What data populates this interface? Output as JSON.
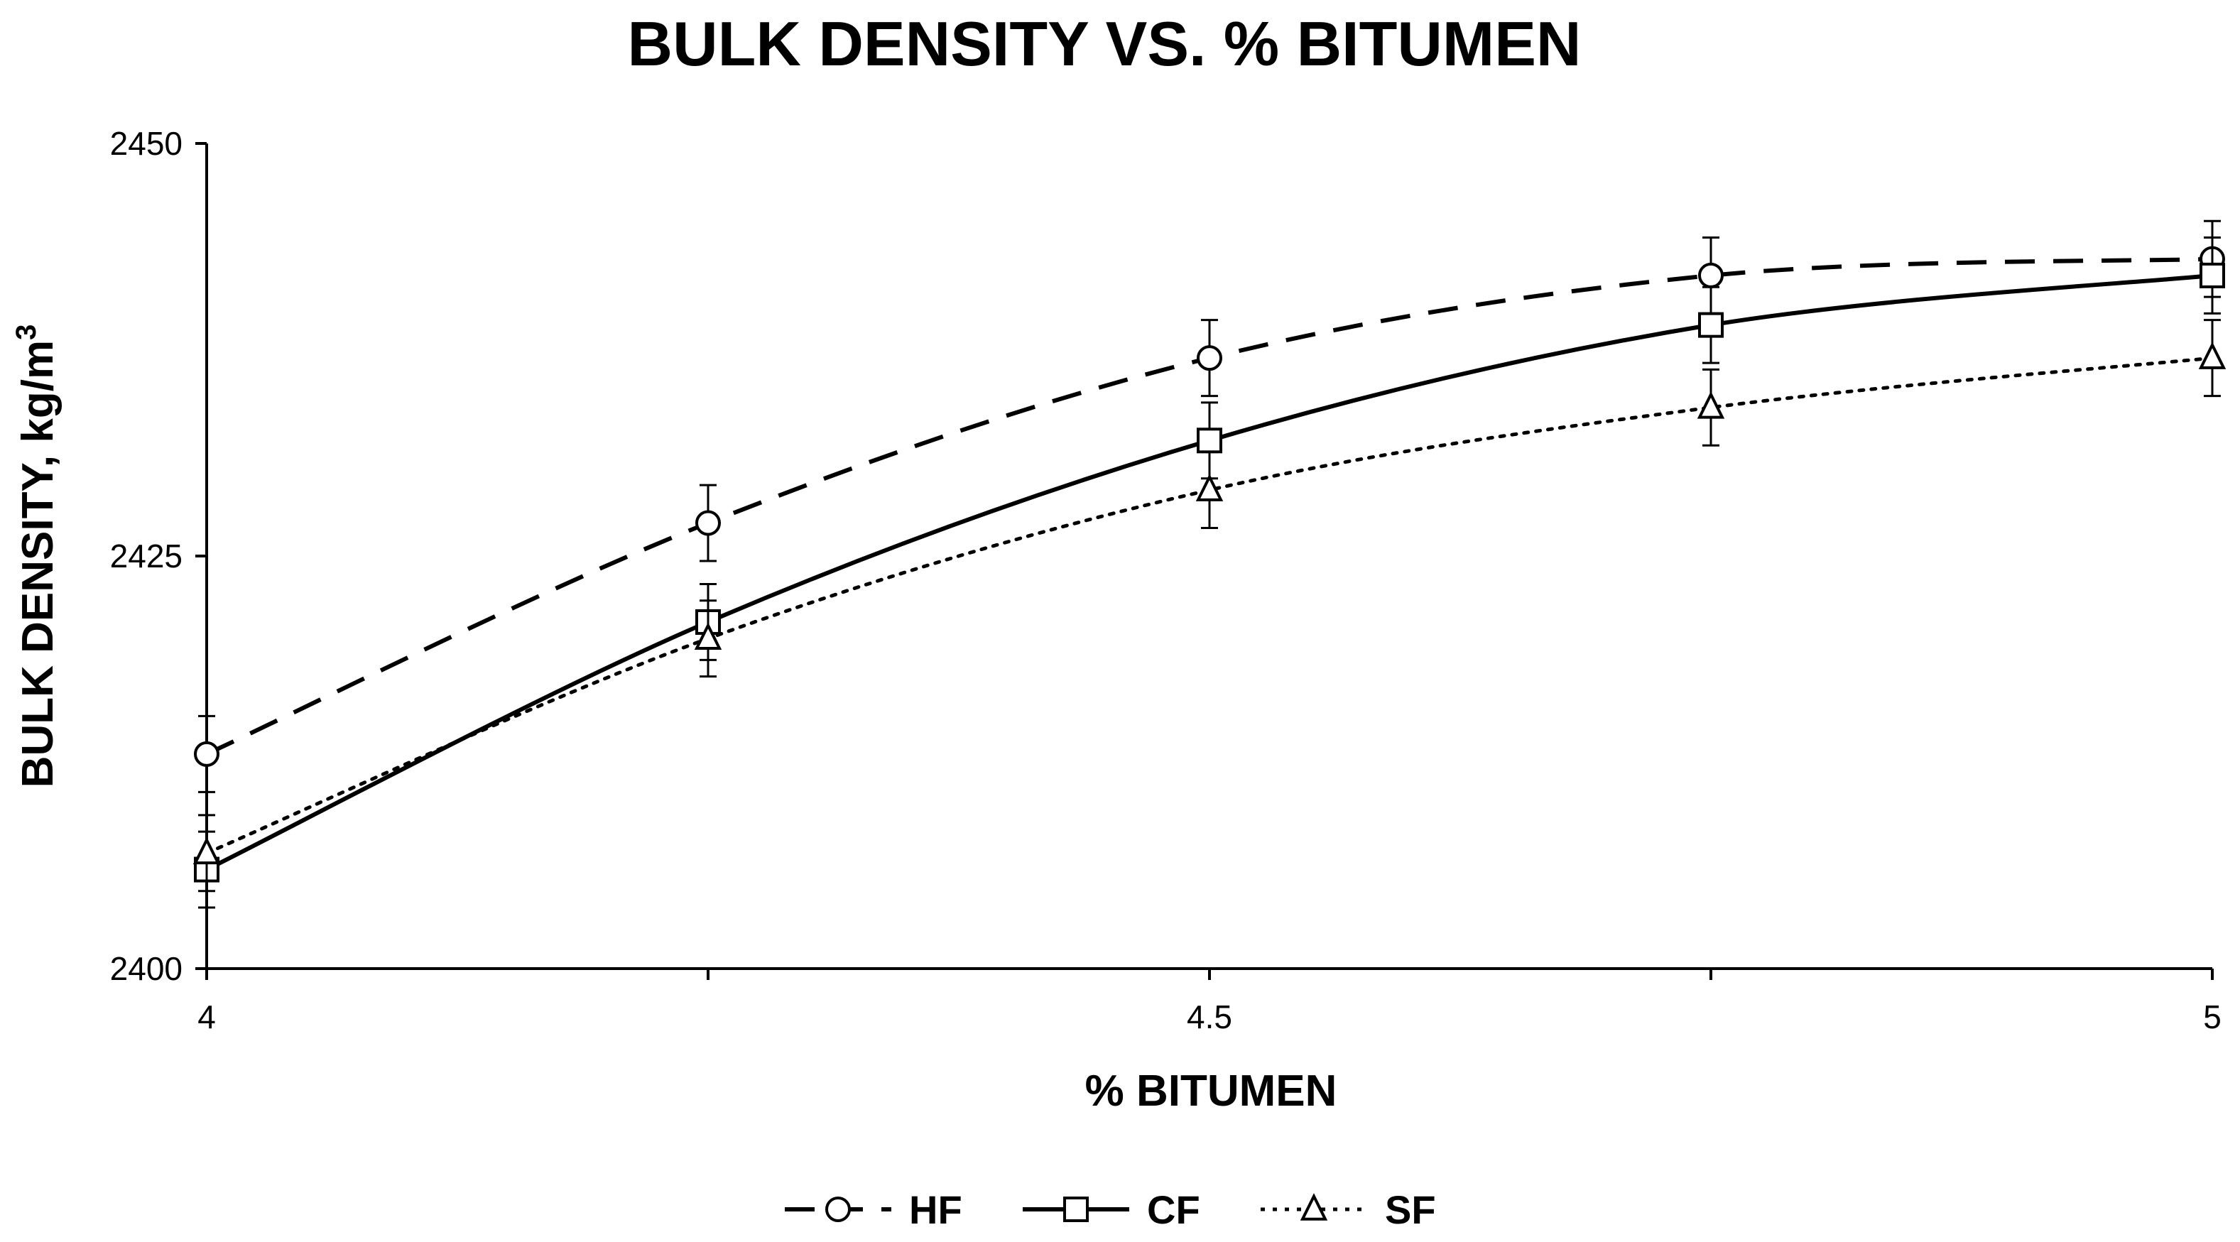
{
  "chart_data": {
    "type": "line",
    "title": "BULK DENSITY VS. % BITUMEN",
    "xlabel": "% BITUMEN",
    "ylabel": "BULK DENSITY, kg/m",
    "ylabel_superscript": "3",
    "xlim": [
      4,
      5
    ],
    "ylim": [
      2400,
      2450
    ],
    "x_ticks": [
      "4",
      "4.5",
      "5"
    ],
    "x_tick_values": [
      4,
      4.5,
      5
    ],
    "y_ticks": [
      "2400",
      "2425",
      "2450"
    ],
    "y_tick_values": [
      2400,
      2425,
      2450
    ],
    "x": [
      4,
      4.25,
      4.5,
      4.75,
      5
    ],
    "grid": false,
    "legend_position": "bottom",
    "series": [
      {
        "name": "HF",
        "values": [
          2413,
          2427,
          2437,
          2442,
          2443
        ],
        "error": [
          2.3,
          2.3,
          2.3,
          2.3,
          2.3
        ],
        "marker": "circle",
        "line_style": "dashed",
        "color": "#000000"
      },
      {
        "name": "CF",
        "values": [
          2406,
          2421,
          2432,
          2439,
          2442
        ],
        "error": [
          2.3,
          2.3,
          2.3,
          2.3,
          2.3
        ],
        "marker": "square",
        "line_style": "solid",
        "color": "#000000"
      },
      {
        "name": "SF",
        "values": [
          2407,
          2420,
          2429,
          2434,
          2437
        ],
        "error": [
          2.3,
          2.3,
          2.3,
          2.3,
          2.3
        ],
        "marker": "triangle",
        "line_style": "dotted",
        "color": "#000000"
      }
    ]
  }
}
